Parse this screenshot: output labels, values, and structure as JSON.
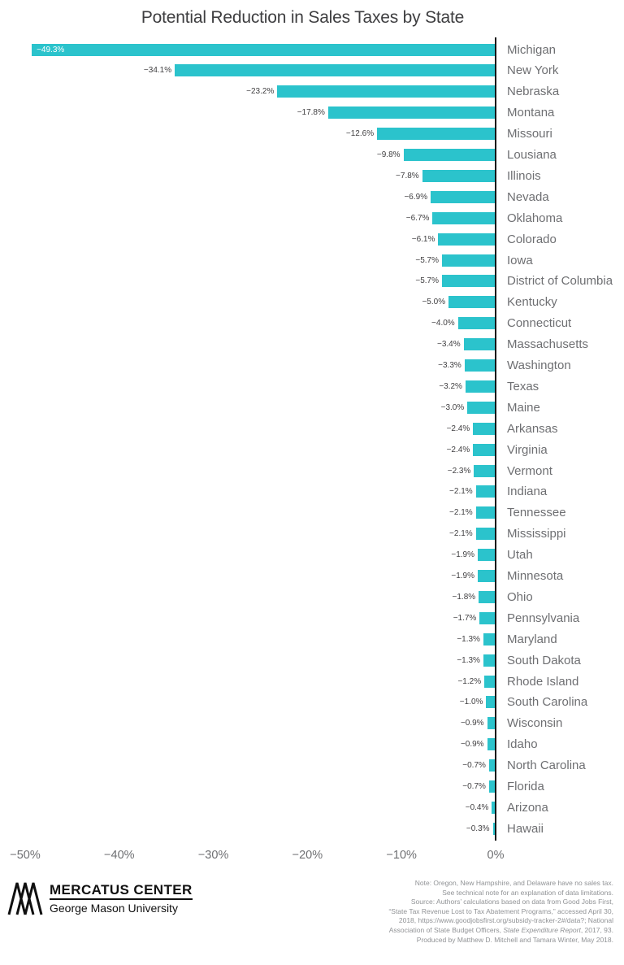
{
  "chart_data": {
    "type": "bar",
    "orientation": "horizontal",
    "title": "Potential Reduction in Sales Taxes by State",
    "xlabel": "",
    "ylabel": "",
    "xlim": [
      -50,
      0
    ],
    "unit": "%",
    "grid": false,
    "legend": "none",
    "bar_color": "#2bc3cc",
    "categories": [
      "Michigan",
      "New York",
      "Nebraska",
      "Montana",
      "Missouri",
      "Lousiana",
      "Illinois",
      "Nevada",
      "Oklahoma",
      "Colorado",
      "Iowa",
      "District of Columbia",
      "Kentucky",
      "Connecticut",
      "Massachusetts",
      "Washington",
      "Texas",
      "Maine",
      "Arkansas",
      "Virginia",
      "Vermont",
      "Indiana",
      "Tennessee",
      "Mississippi",
      "Utah",
      "Minnesota",
      "Ohio",
      "Pennsylvania",
      "Maryland",
      "South Dakota",
      "Rhode Island",
      "South Carolina",
      "Wisconsin",
      "Idaho",
      "North Carolina",
      "Florida",
      "Arizona",
      "Hawaii"
    ],
    "values": [
      -49.3,
      -34.1,
      -23.2,
      -17.8,
      -12.6,
      -9.8,
      -7.8,
      -6.9,
      -6.7,
      -6.1,
      -5.7,
      -5.7,
      -5.0,
      -4.0,
      -3.4,
      -3.3,
      -3.2,
      -3.0,
      -2.4,
      -2.4,
      -2.3,
      -2.1,
      -2.1,
      -2.1,
      -1.9,
      -1.9,
      -1.8,
      -1.7,
      -1.3,
      -1.3,
      -1.2,
      -1.0,
      -0.9,
      -0.9,
      -0.7,
      -0.7,
      -0.4,
      -0.3
    ],
    "value_labels": [
      "−49.3%",
      "−34.1%",
      "−23.2%",
      "−17.8%",
      "−12.6%",
      "−9.8%",
      "−7.8%",
      "−6.9%",
      "−6.7%",
      "−6.1%",
      "−5.7%",
      "−5.7%",
      "−5.0%",
      "−4.0%",
      "−3.4%",
      "−3.3%",
      "−3.2%",
      "−3.0%",
      "−2.4%",
      "−2.4%",
      "−2.3%",
      "−2.1%",
      "−2.1%",
      "−2.1%",
      "−1.9%",
      "−1.9%",
      "−1.8%",
      "−1.7%",
      "−1.3%",
      "−1.3%",
      "−1.2%",
      "−1.0%",
      "−0.9%",
      "−0.9%",
      "−0.7%",
      "−0.7%",
      "−0.4%",
      "−0.3%"
    ],
    "x_ticks": [
      {
        "value": -50,
        "label": "−50%"
      },
      {
        "value": -40,
        "label": "−40%"
      },
      {
        "value": -30,
        "label": "−30%"
      },
      {
        "value": -20,
        "label": "−20%"
      },
      {
        "value": -10,
        "label": "−10%"
      },
      {
        "value": 0,
        "label": "0%"
      }
    ]
  },
  "footer": {
    "logo": {
      "title": "MERCATUS CENTER",
      "subtitle": "George Mason University"
    },
    "notes": [
      {
        "parts": [
          {
            "text": "Note: Oregon, New Hampshire, and Delaware have no sales tax."
          }
        ]
      },
      {
        "parts": [
          {
            "text": "See technical note for an explanation of data limitations."
          }
        ]
      },
      {
        "parts": [
          {
            "text": "Source: Authors’ calculations based on data from Good Jobs First,"
          }
        ]
      },
      {
        "parts": [
          {
            "text": "“State Tax Revenue Lost to Tax Abatement Programs,” accessed April 30,"
          }
        ]
      },
      {
        "parts": [
          {
            "text": "2018, https://www.goodjobsfirst.org/subsidy-tracker-2#/data?; National"
          }
        ]
      },
      {
        "parts": [
          {
            "text": "Association of State Budget Officers, "
          },
          {
            "text": "State Expenditure Report",
            "italic": true
          },
          {
            "text": ", 2017, 93."
          }
        ]
      },
      {
        "parts": [
          {
            "text": "Produced by Matthew D. Mitchell and Tamara Winter, May 2018."
          }
        ]
      }
    ]
  }
}
